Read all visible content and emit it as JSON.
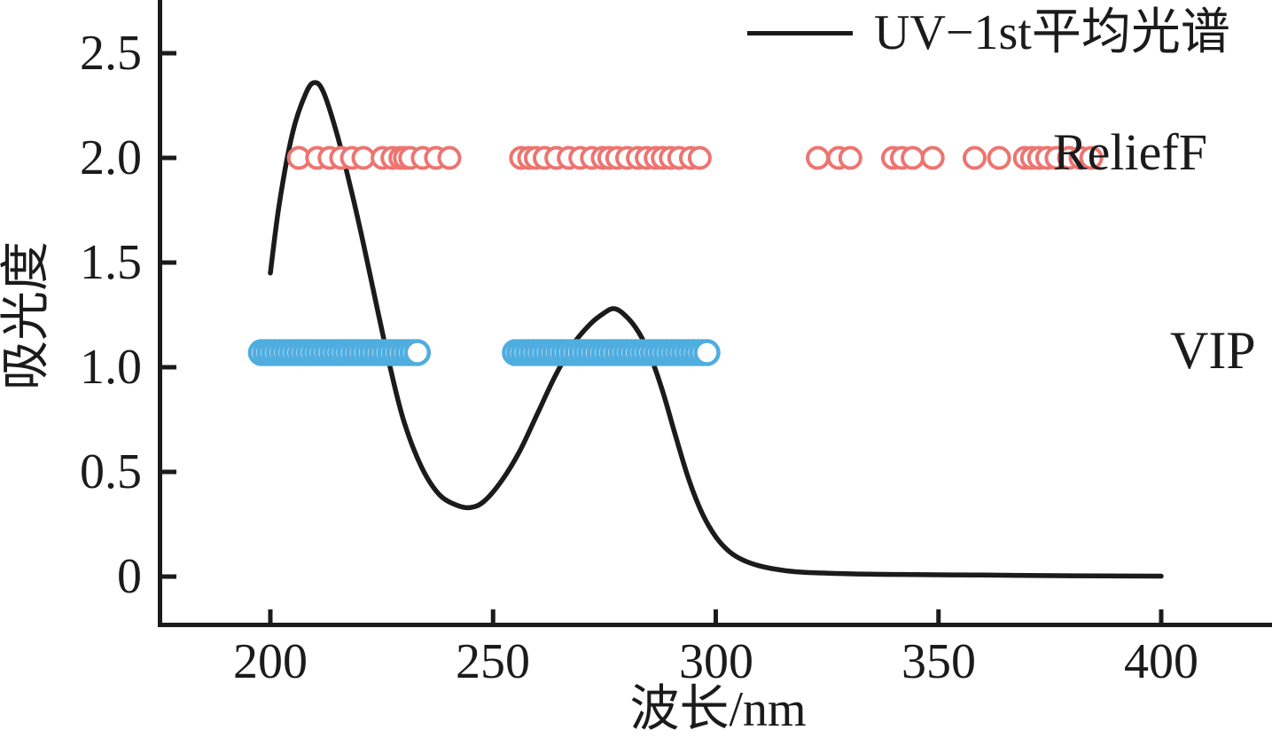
{
  "figure": {
    "ylabel": "吸光度",
    "xlabel": "波长/nm",
    "legend": {
      "series_label": "UV−1st平均光谱"
    },
    "annotations": {
      "relieff": "ReliefF",
      "vip": "VIP"
    }
  },
  "chart_data": {
    "type": "line+scatter",
    "title": "",
    "xlabel": "波长/nm",
    "ylabel": "吸光度",
    "grid": false,
    "legend_position": "top-right",
    "x_axis": {
      "min": 175,
      "max": 425,
      "ticks": [
        200,
        250,
        300,
        350,
        400
      ],
      "tick_labels": [
        "200",
        "250",
        "300",
        "350",
        "400"
      ]
    },
    "y_axis": {
      "min": -0.23,
      "max": 2.75,
      "ticks": [
        0,
        0.5,
        1.0,
        1.5,
        2.0,
        2.5
      ],
      "tick_labels": [
        "0",
        "0.5",
        "1.0",
        "1.5",
        "2.0",
        "2.5"
      ]
    },
    "series": [
      {
        "name": "UV−1st平均光谱",
        "type": "line",
        "color": "#1b1b1b",
        "line_width": 5.5,
        "points": [
          [
            200,
            1.45
          ],
          [
            202,
            1.78
          ],
          [
            205,
            2.12
          ],
          [
            208,
            2.31
          ],
          [
            210,
            2.36
          ],
          [
            212,
            2.31
          ],
          [
            215,
            2.11
          ],
          [
            218,
            1.86
          ],
          [
            221,
            1.58
          ],
          [
            224,
            1.28
          ],
          [
            227,
            0.99
          ],
          [
            230,
            0.74
          ],
          [
            234,
            0.52
          ],
          [
            238,
            0.39
          ],
          [
            242,
            0.34
          ],
          [
            245,
            0.33
          ],
          [
            248,
            0.36
          ],
          [
            252,
            0.46
          ],
          [
            256,
            0.6
          ],
          [
            260,
            0.78
          ],
          [
            264,
            0.96
          ],
          [
            268,
            1.11
          ],
          [
            272,
            1.21
          ],
          [
            275,
            1.26
          ],
          [
            277,
            1.28
          ],
          [
            279,
            1.26
          ],
          [
            282,
            1.19
          ],
          [
            285,
            1.07
          ],
          [
            288,
            0.89
          ],
          [
            291,
            0.67
          ],
          [
            294,
            0.46
          ],
          [
            297,
            0.3
          ],
          [
            300,
            0.19
          ],
          [
            303,
            0.12
          ],
          [
            306,
            0.08
          ],
          [
            310,
            0.05
          ],
          [
            315,
            0.03
          ],
          [
            320,
            0.02
          ],
          [
            330,
            0.013
          ],
          [
            340,
            0.01
          ],
          [
            360,
            0.007
          ],
          [
            380,
            0.004
          ],
          [
            400,
            0.002
          ]
        ]
      },
      {
        "name": "ReliefF",
        "type": "scatter",
        "marker": "open-circle",
        "color": "#ED7470",
        "marker_y": 2.0,
        "marker_radius": 11.5,
        "marker_stroke": 4,
        "x": [
          206.4,
          210.5,
          213.3,
          215.9,
          218.3,
          220.9,
          225.2,
          227.4,
          229.2,
          230.2,
          231.4,
          234.2,
          237.2,
          240.2,
          256.3,
          258.1,
          259.6,
          261.6,
          264.2,
          267.0,
          269.6,
          272.2,
          274.6,
          276.1,
          277.9,
          280.1,
          282.5,
          284.5,
          286.5,
          288.1,
          289.9,
          291.8,
          294.4,
          296.4,
          322.9,
          327.6,
          330.2,
          339.8,
          341.8,
          344.2,
          348.7,
          358.1,
          363.6,
          369.4,
          371.0,
          372.6,
          374.4,
          376.5,
          379.3,
          381.9,
          384.3
        ]
      },
      {
        "name": "VIP",
        "type": "scatter",
        "marker": "open-circle",
        "color": "#4FADE0",
        "marker_y": 1.07,
        "marker_radius": 13,
        "marker_stroke": 4.5,
        "x": [
          198,
          199,
          200,
          201,
          202,
          203,
          204,
          205,
          206,
          207,
          208,
          209,
          210,
          211,
          212,
          213,
          214,
          215,
          216,
          217,
          218,
          219,
          220,
          221,
          222,
          223,
          224,
          225,
          226,
          227,
          228,
          229,
          230,
          231,
          232,
          233,
          255,
          256,
          257,
          258,
          259,
          260,
          261,
          262,
          263,
          264,
          265,
          266,
          267,
          268,
          269,
          270,
          271,
          272,
          273,
          274,
          275,
          276,
          277,
          278,
          279,
          280,
          281,
          282,
          283,
          284,
          285,
          286,
          287,
          288,
          289,
          290,
          291,
          292,
          293,
          294,
          295,
          296,
          297,
          298
        ]
      }
    ]
  }
}
